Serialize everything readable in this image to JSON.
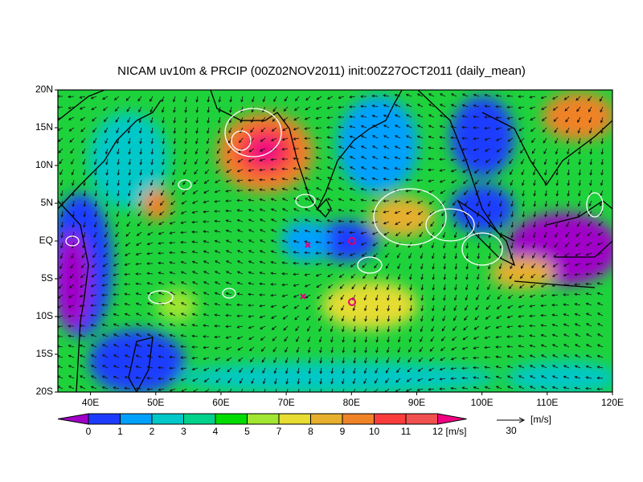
{
  "header": {
    "title": "NICAM uv10m & PRCIP (00Z02NOV2011) init:00Z27OCT2011 (daily_mean)"
  },
  "map": {
    "lat_labels": [
      "20N",
      "15N",
      "10N",
      "5N",
      "EQ",
      "5S",
      "10S",
      "15S",
      "20S"
    ],
    "lon_labels": [
      "40E",
      "50E",
      "60E",
      "70E",
      "80E",
      "90E",
      "100E",
      "110E",
      "120E"
    ]
  },
  "colorbar": {
    "labels": [
      "0",
      "1",
      "2",
      "3",
      "4",
      "5",
      "7",
      "8",
      "9",
      "10",
      "11",
      "12"
    ],
    "unit": "[m/s]"
  },
  "reference_vector": {
    "label": "30",
    "unit": "[m/s]"
  }
}
